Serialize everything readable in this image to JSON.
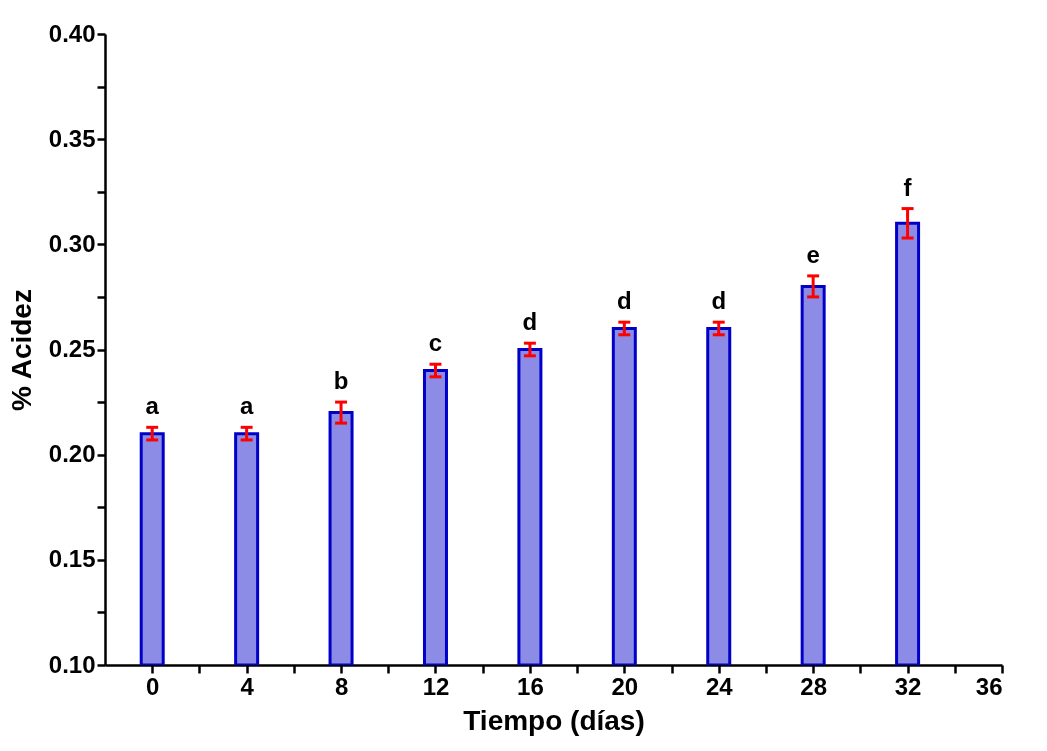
{
  "chart_data": {
    "type": "bar",
    "xlabel": "Tiempo (días)",
    "ylabel": "% Acidez",
    "x": [
      0,
      4,
      8,
      12,
      16,
      20,
      24,
      28,
      32
    ],
    "series": [
      {
        "color": "#0000c8",
        "values": [
          0.21,
          0.21,
          0.22,
          0.24,
          0.25,
          0.26,
          0.26,
          0.28,
          0.31
        ],
        "errors": [
          0.003,
          0.003,
          0.005,
          0.003,
          0.003,
          0.003,
          0.003,
          0.005,
          0.007
        ]
      }
    ],
    "xlim": [
      -2,
      36
    ],
    "xticks": [
      0,
      {
        "value": 2,
        "label": null
      },
      4,
      {
        "value": 6,
        "label": null
      },
      8,
      {
        "value": 10,
        "label": null
      },
      12,
      {
        "value": 14,
        "label": null
      },
      16,
      {
        "value": 18,
        "label": null
      },
      20,
      {
        "value": 22,
        "label": null
      },
      24,
      {
        "value": 26,
        "label": null
      },
      28,
      {
        "value": 30,
        "label": null
      },
      32,
      {
        "value": 34,
        "label": null
      },
      36
    ],
    "ylim": [
      0.1,
      0.4
    ],
    "yticks": [
      {
        "value": 0.1,
        "label": "0.10"
      },
      {
        "value": 0.125,
        "label": null
      },
      {
        "value": 0.15,
        "label": "0.15"
      },
      {
        "value": 0.175,
        "label": null
      },
      {
        "value": 0.2,
        "label": "0.20"
      },
      {
        "value": 0.225,
        "label": null
      },
      {
        "value": 0.25,
        "label": "0.25"
      },
      {
        "value": 0.275,
        "label": null
      },
      {
        "value": 0.3,
        "label": "0.30"
      },
      {
        "value": 0.325,
        "label": null
      },
      {
        "value": 0.35,
        "label": "0.35"
      },
      {
        "value": 0.375,
        "label": null
      },
      {
        "value": 0.4,
        "label": "0.40"
      }
    ],
    "grid": false,
    "annotations": [
      "a",
      "a",
      "b",
      "c",
      "d",
      "d",
      "d",
      "e",
      "f"
    ]
  }
}
